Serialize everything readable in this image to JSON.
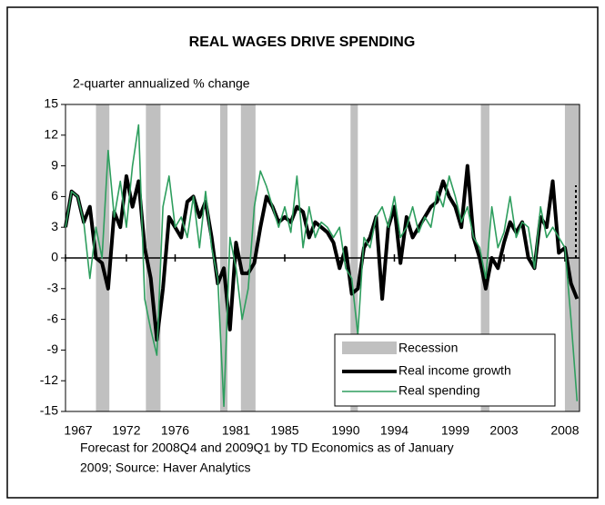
{
  "chart_data": {
    "type": "line",
    "title": "REAL WAGES DRIVE SPENDING",
    "y_label": "2-quarter annualized % change",
    "footnote": [
      "Forecast for 2008Q4 and 2009Q1 by TD Economics as of January",
      "2009; Source: Haver Analytics"
    ],
    "x": [
      1967,
      1967.5,
      1968,
      1968.5,
      1969,
      1969.5,
      1970,
      1970.5,
      1971,
      1971.5,
      1972,
      1972.5,
      1973,
      1973.5,
      1974,
      1974.5,
      1975,
      1975.5,
      1976,
      1976.5,
      1977,
      1977.5,
      1978,
      1978.5,
      1979,
      1979.5,
      1980,
      1980.5,
      1981,
      1981.5,
      1982,
      1982.5,
      1983,
      1983.5,
      1984,
      1984.5,
      1985,
      1985.5,
      1986,
      1986.5,
      1987,
      1987.5,
      1988,
      1988.5,
      1989,
      1989.5,
      1990,
      1990.5,
      1991,
      1991.5,
      1992,
      1992.5,
      1993,
      1993.5,
      1994,
      1994.5,
      1995,
      1995.5,
      1996,
      1996.5,
      1997,
      1997.5,
      1998,
      1998.5,
      1999,
      1999.5,
      2000,
      2000.5,
      2001,
      2001.5,
      2002,
      2002.5,
      2003,
      2003.5,
      2004,
      2004.5,
      2005,
      2005.5,
      2006,
      2006.5,
      2007,
      2007.5,
      2008,
      2008.5,
      2009
    ],
    "series": [
      {
        "name": "Real income growth",
        "color": "#000000",
        "width": 4,
        "values": [
          3,
          6.5,
          6,
          3.5,
          5,
          0,
          -0.5,
          -3,
          4.5,
          3,
          8,
          5,
          7.5,
          1,
          -2,
          -8,
          -3,
          4,
          3,
          2,
          5.5,
          6,
          4,
          5.5,
          2,
          -2.5,
          -1,
          -7,
          1.5,
          -1.5,
          -1.5,
          -0.5,
          3,
          6,
          5,
          3.5,
          4,
          3.5,
          5,
          4.5,
          2,
          3.5,
          3,
          2.5,
          1.5,
          -1,
          1,
          -3.5,
          -3,
          1,
          2,
          4,
          -4,
          3,
          5,
          -0.5,
          4,
          2,
          3,
          4,
          5,
          5.5,
          7.5,
          6,
          5,
          3,
          9,
          2,
          0,
          -3,
          0,
          -1,
          1.5,
          3.5,
          2.5,
          3.5,
          0,
          -1,
          4,
          3,
          7.5,
          0.5,
          1,
          -2.5,
          -4
        ]
      },
      {
        "name": "Real spending",
        "color": "#2e9e5e",
        "width": 1.6,
        "values": [
          3,
          6.5,
          6,
          3.5,
          -2,
          3,
          0,
          10.5,
          4,
          7.5,
          3,
          9,
          13,
          -4,
          -7,
          -9.5,
          5,
          8,
          3,
          4,
          2,
          6,
          1,
          6.5,
          1,
          -2,
          -14.5,
          2,
          -1,
          -6,
          -3,
          5,
          8.5,
          7,
          5,
          3,
          5,
          2.5,
          8,
          1,
          5,
          2,
          3.5,
          3,
          2,
          3,
          -1,
          -2,
          -7.5,
          2,
          1,
          4,
          5,
          3,
          6,
          2,
          3,
          5,
          2.5,
          4,
          3,
          6.5,
          5,
          8,
          6,
          3.5,
          5,
          2,
          1,
          -2,
          5,
          1,
          2.5,
          6,
          2,
          3.5,
          3,
          -1,
          5,
          2,
          3,
          2,
          1,
          -6,
          -14
        ]
      }
    ],
    "recession": {
      "name": "Recession",
      "color": "#c0c0c0",
      "periods": [
        [
          1969.5,
          1970.6
        ],
        [
          1973.6,
          1974.8
        ],
        [
          1979.7,
          1980.3
        ],
        [
          1981.4,
          1982.6
        ],
        [
          1990.4,
          1991.0
        ],
        [
          2001.1,
          2001.8
        ],
        [
          2008.0,
          2009.2
        ]
      ]
    },
    "xlim": [
      1967,
      2009.2
    ],
    "xticks": [
      1967,
      1972,
      1976,
      1981,
      1985,
      1990,
      1994,
      1999,
      2003,
      2008
    ],
    "ylim": [
      -15,
      15
    ],
    "yticks": [
      -15,
      -12,
      -9,
      -6,
      -3,
      0,
      3,
      6,
      9,
      12,
      15
    ],
    "legend": "lower right"
  }
}
